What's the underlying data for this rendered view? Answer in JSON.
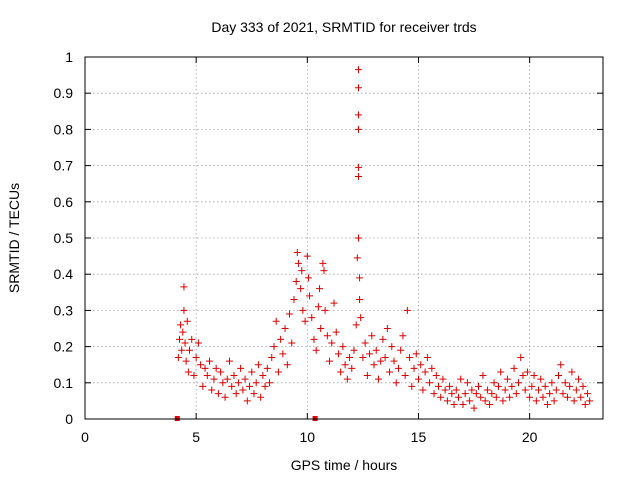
{
  "chart_data": {
    "type": "scatter",
    "title": "Day 333 of 2021, SRMTID for receiver trds",
    "xlabel": "GPS time / hours",
    "ylabel": "SRMTID / TECUs",
    "xlim": [
      0,
      23.3
    ],
    "ylim": [
      0,
      1
    ],
    "xticks": [
      0,
      5,
      10,
      15,
      20
    ],
    "yticks": [
      0,
      0.1,
      0.2,
      0.3,
      0.4,
      0.5,
      0.6,
      0.7,
      0.8,
      0.9,
      1
    ],
    "grid": true,
    "marker": "+",
    "color": "#dd0000",
    "series": [
      {
        "name": "SRMTID",
        "points": [
          [
            4.2,
            0.17
          ],
          [
            4.25,
            0.22
          ],
          [
            4.3,
            0.26
          ],
          [
            4.35,
            0.19
          ],
          [
            4.4,
            0.24
          ],
          [
            4.45,
            0.3
          ],
          [
            4.45,
            0.365
          ],
          [
            4.5,
            0.21
          ],
          [
            4.55,
            0.16
          ],
          [
            4.6,
            0.27
          ],
          [
            4.65,
            0.13
          ],
          [
            4.7,
            0.19
          ],
          [
            4.8,
            0.22
          ],
          [
            4.9,
            0.12
          ],
          [
            5.0,
            0.17
          ],
          [
            5.1,
            0.21
          ],
          [
            5.2,
            0.15
          ],
          [
            5.3,
            0.09
          ],
          [
            5.4,
            0.14
          ],
          [
            5.5,
            0.12
          ],
          [
            5.6,
            0.16
          ],
          [
            5.7,
            0.08
          ],
          [
            5.8,
            0.11
          ],
          [
            5.9,
            0.14
          ],
          [
            6.0,
            0.07
          ],
          [
            6.1,
            0.13
          ],
          [
            6.2,
            0.1
          ],
          [
            6.3,
            0.06
          ],
          [
            6.4,
            0.11
          ],
          [
            6.5,
            0.16
          ],
          [
            6.6,
            0.09
          ],
          [
            6.7,
            0.12
          ],
          [
            6.8,
            0.07
          ],
          [
            6.9,
            0.1
          ],
          [
            7.0,
            0.14
          ],
          [
            7.1,
            0.08
          ],
          [
            7.2,
            0.11
          ],
          [
            7.3,
            0.05
          ],
          [
            7.4,
            0.09
          ],
          [
            7.5,
            0.13
          ],
          [
            7.6,
            0.07
          ],
          [
            7.7,
            0.1
          ],
          [
            7.8,
            0.15
          ],
          [
            7.9,
            0.06
          ],
          [
            8.0,
            0.12
          ],
          [
            8.1,
            0.09
          ],
          [
            8.2,
            0.14
          ],
          [
            8.3,
            0.1
          ],
          [
            8.4,
            0.17
          ],
          [
            8.5,
            0.2
          ],
          [
            8.6,
            0.27
          ],
          [
            8.7,
            0.13
          ],
          [
            8.8,
            0.22
          ],
          [
            8.9,
            0.18
          ],
          [
            9.0,
            0.25
          ],
          [
            9.1,
            0.15
          ],
          [
            9.2,
            0.29
          ],
          [
            9.3,
            0.21
          ],
          [
            9.4,
            0.33
          ],
          [
            9.5,
            0.38
          ],
          [
            9.55,
            0.46
          ],
          [
            9.6,
            0.43
          ],
          [
            9.7,
            0.36
          ],
          [
            9.75,
            0.41
          ],
          [
            9.8,
            0.3
          ],
          [
            9.9,
            0.27
          ],
          [
            10.0,
            0.45
          ],
          [
            10.05,
            0.39
          ],
          [
            10.1,
            0.34
          ],
          [
            10.2,
            0.28
          ],
          [
            10.3,
            0.22
          ],
          [
            10.4,
            0.19
          ],
          [
            10.5,
            0.31
          ],
          [
            10.55,
            0.36
          ],
          [
            10.6,
            0.25
          ],
          [
            10.7,
            0.43
          ],
          [
            10.75,
            0.41
          ],
          [
            10.8,
            0.3
          ],
          [
            10.9,
            0.23
          ],
          [
            11.0,
            0.16
          ],
          [
            11.1,
            0.21
          ],
          [
            11.2,
            0.32
          ],
          [
            11.3,
            0.24
          ],
          [
            11.4,
            0.18
          ],
          [
            11.5,
            0.13
          ],
          [
            11.6,
            0.2
          ],
          [
            11.7,
            0.15
          ],
          [
            11.8,
            0.11
          ],
          [
            11.9,
            0.17
          ],
          [
            12.0,
            0.14
          ],
          [
            12.1,
            0.19
          ],
          [
            12.2,
            0.26
          ],
          [
            12.25,
            0.445
          ],
          [
            12.3,
            0.965
          ],
          [
            12.3,
            0.915
          ],
          [
            12.3,
            0.84
          ],
          [
            12.3,
            0.8
          ],
          [
            12.3,
            0.695
          ],
          [
            12.3,
            0.67
          ],
          [
            12.3,
            0.5
          ],
          [
            12.35,
            0.39
          ],
          [
            12.35,
            0.33
          ],
          [
            12.4,
            0.28
          ],
          [
            12.5,
            0.17
          ],
          [
            12.6,
            0.21
          ],
          [
            12.7,
            0.12
          ],
          [
            12.8,
            0.18
          ],
          [
            12.9,
            0.23
          ],
          [
            13.0,
            0.15
          ],
          [
            13.1,
            0.19
          ],
          [
            13.2,
            0.11
          ],
          [
            13.3,
            0.16
          ],
          [
            13.4,
            0.22
          ],
          [
            13.5,
            0.17
          ],
          [
            13.6,
            0.25
          ],
          [
            13.7,
            0.13
          ],
          [
            13.8,
            0.2
          ],
          [
            13.9,
            0.16
          ],
          [
            14.0,
            0.1
          ],
          [
            14.1,
            0.14
          ],
          [
            14.2,
            0.19
          ],
          [
            14.3,
            0.23
          ],
          [
            14.4,
            0.12
          ],
          [
            14.5,
            0.3
          ],
          [
            14.6,
            0.17
          ],
          [
            14.7,
            0.09
          ],
          [
            14.8,
            0.14
          ],
          [
            14.9,
            0.18
          ],
          [
            15.0,
            0.11
          ],
          [
            15.1,
            0.15
          ],
          [
            15.2,
            0.08
          ],
          [
            15.3,
            0.13
          ],
          [
            15.4,
            0.17
          ],
          [
            15.5,
            0.1
          ],
          [
            15.6,
            0.14
          ],
          [
            15.7,
            0.07
          ],
          [
            15.8,
            0.12
          ],
          [
            15.9,
            0.09
          ],
          [
            16.0,
            0.06
          ],
          [
            16.1,
            0.11
          ],
          [
            16.2,
            0.08
          ],
          [
            16.3,
            0.05
          ],
          [
            16.4,
            0.09
          ],
          [
            16.5,
            0.07
          ],
          [
            16.6,
            0.04
          ],
          [
            16.7,
            0.08
          ],
          [
            16.8,
            0.06
          ],
          [
            16.9,
            0.11
          ],
          [
            17.0,
            0.04
          ],
          [
            17.1,
            0.07
          ],
          [
            17.2,
            0.1
          ],
          [
            17.3,
            0.05
          ],
          [
            17.4,
            0.08
          ],
          [
            17.5,
            0.03
          ],
          [
            17.6,
            0.07
          ],
          [
            17.7,
            0.09
          ],
          [
            17.8,
            0.06
          ],
          [
            17.9,
            0.12
          ],
          [
            18.0,
            0.05
          ],
          [
            18.1,
            0.08
          ],
          [
            18.2,
            0.04
          ],
          [
            18.3,
            0.07
          ],
          [
            18.4,
            0.1
          ],
          [
            18.5,
            0.06
          ],
          [
            18.6,
            0.09
          ],
          [
            18.7,
            0.13
          ],
          [
            18.8,
            0.05
          ],
          [
            18.9,
            0.08
          ],
          [
            19.0,
            0.11
          ],
          [
            19.1,
            0.06
          ],
          [
            19.2,
            0.09
          ],
          [
            19.3,
            0.14
          ],
          [
            19.4,
            0.07
          ],
          [
            19.5,
            0.1
          ],
          [
            19.6,
            0.17
          ],
          [
            19.7,
            0.12
          ],
          [
            19.8,
            0.08
          ],
          [
            19.9,
            0.13
          ],
          [
            20.0,
            0.06
          ],
          [
            20.1,
            0.09
          ],
          [
            20.2,
            0.12
          ],
          [
            20.3,
            0.05
          ],
          [
            20.4,
            0.08
          ],
          [
            20.5,
            0.11
          ],
          [
            20.6,
            0.06
          ],
          [
            20.7,
            0.09
          ],
          [
            20.8,
            0.04
          ],
          [
            20.9,
            0.07
          ],
          [
            21.0,
            0.1
          ],
          [
            21.1,
            0.05
          ],
          [
            21.2,
            0.08
          ],
          [
            21.3,
            0.12
          ],
          [
            21.4,
            0.15
          ],
          [
            21.5,
            0.07
          ],
          [
            21.6,
            0.1
          ],
          [
            21.7,
            0.06
          ],
          [
            21.8,
            0.09
          ],
          [
            21.9,
            0.13
          ],
          [
            22.0,
            0.05
          ],
          [
            22.1,
            0.08
          ],
          [
            22.2,
            0.11
          ],
          [
            22.3,
            0.06
          ],
          [
            22.4,
            0.09
          ],
          [
            22.5,
            0.04
          ],
          [
            22.6,
            0.07
          ],
          [
            22.7,
            0.05
          ]
        ]
      }
    ],
    "baseline_markers": [
      4.15,
      10.35
    ]
  }
}
